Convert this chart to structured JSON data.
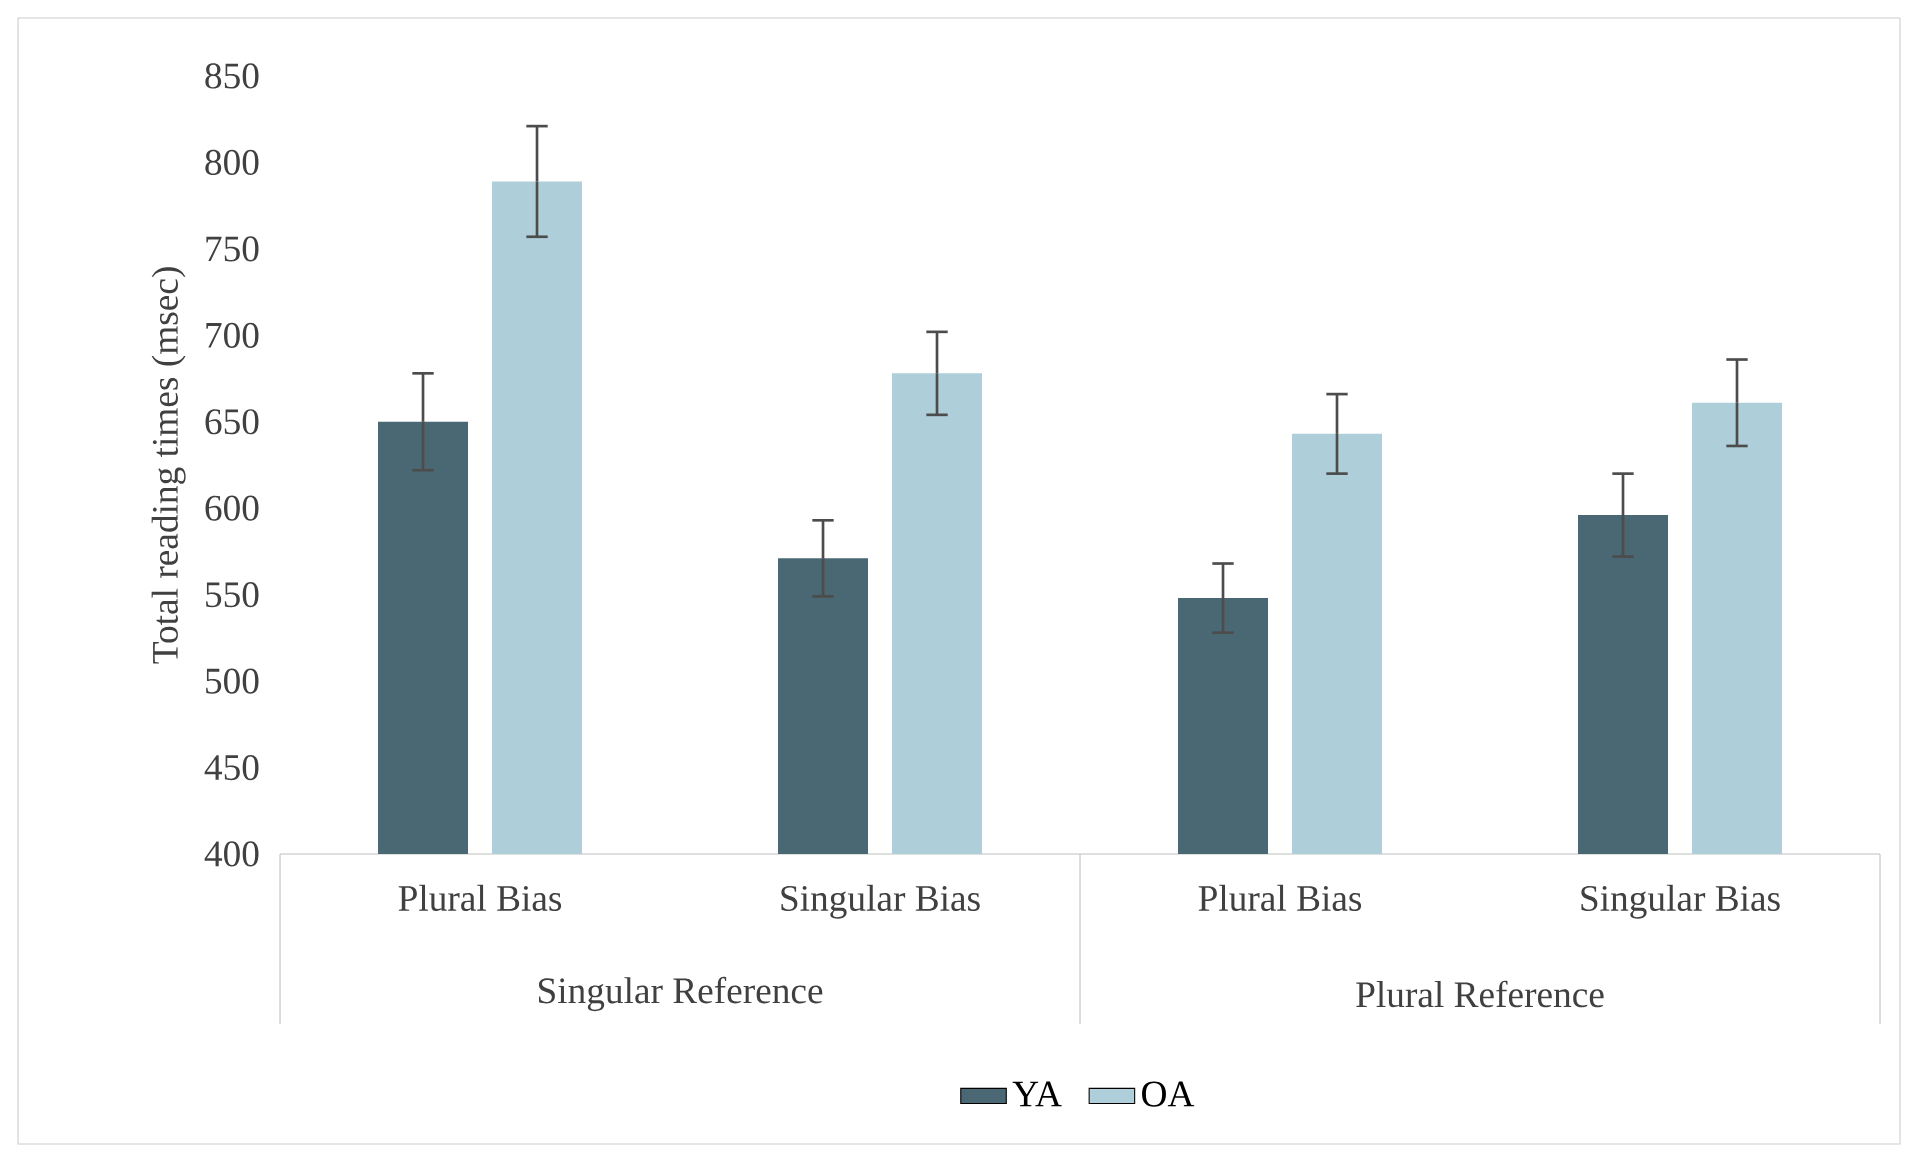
{
  "chart_data": {
    "type": "bar",
    "ylabel": "Total reading times (msec)",
    "categories": [
      "Plural Bias",
      "Singular Bias",
      "Plural Bias",
      "Singular Bias"
    ],
    "series": [
      {
        "name": "YA",
        "color": "#4a6874",
        "values": [
          650,
          571,
          548,
          596
        ],
        "errors": [
          28,
          22,
          20,
          24
        ]
      },
      {
        "name": "OA",
        "color": "#aecfda",
        "values": [
          789,
          678,
          643,
          661
        ],
        "errors": [
          32,
          24,
          23,
          25
        ]
      }
    ],
    "annotations": [
      "Singular Reference",
      "Plural Reference"
    ],
    "ylim": [
      400,
      850
    ],
    "yticks": [
      400,
      450,
      500,
      550,
      600,
      650,
      700,
      750,
      800,
      850
    ],
    "legend": "bottom"
  }
}
